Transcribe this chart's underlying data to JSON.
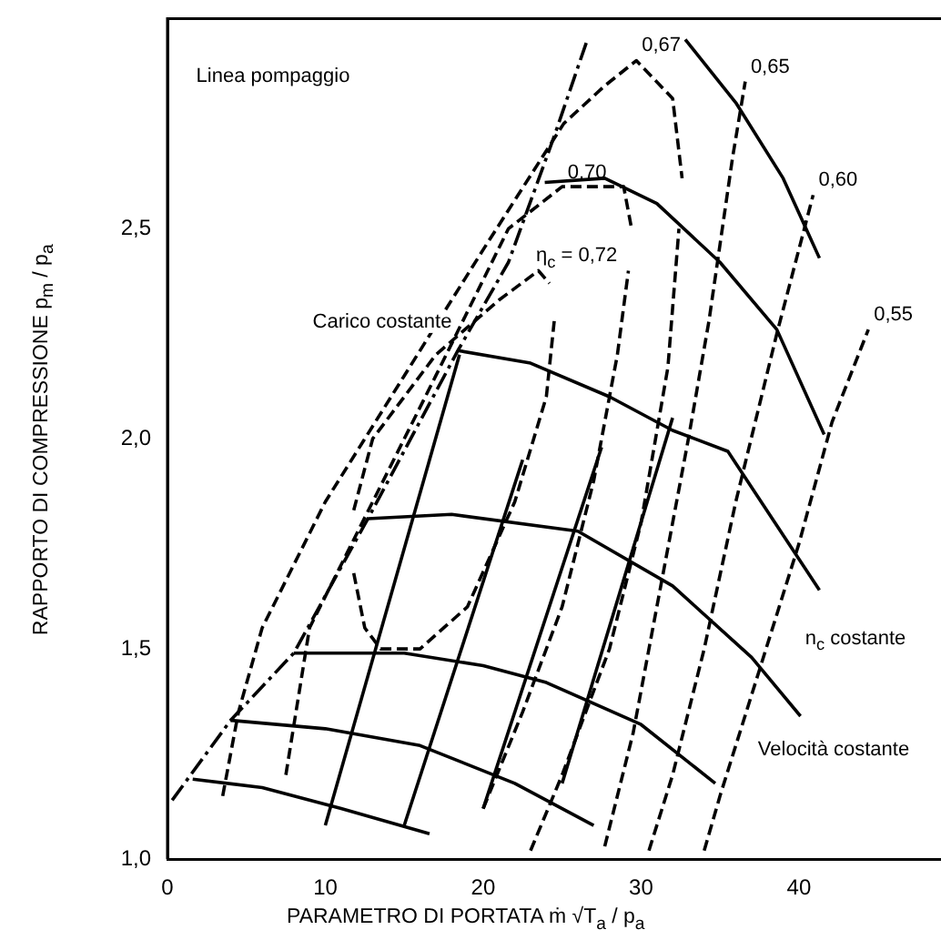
{
  "chart_data": {
    "type": "line",
    "xlabel": "PARAMETRO DI PORTATA ṁ √T$_{a}$ / p$_{a}$",
    "ylabel": "RAPPORTO DI COMPRESSIONE p$_{m}$ / p$_{a}$",
    "xlim": [
      0,
      49
    ],
    "ylim": [
      1,
      3
    ],
    "xticks": [
      0,
      10,
      20,
      30,
      40
    ],
    "yticks": [
      {
        "value": 1,
        "label": "1,0"
      },
      {
        "value": 1.5,
        "label": "1,5"
      },
      {
        "value": 2,
        "label": "2,0"
      },
      {
        "value": 2.5,
        "label": "2,5"
      }
    ],
    "grid": false,
    "legend": false,
    "marker": "none",
    "series": [
      {
        "color": "#000000",
        "line_style": "dashdot",
        "x": [
          0.3,
          4,
          8,
          12.7,
          18.4,
          21.6,
          24.5,
          26.6
        ],
        "values": [
          1.14,
          1.33,
          1.49,
          1.81,
          2.21,
          2.42,
          2.72,
          2.95
        ]
      },
      {
        "color": "#000000",
        "line_style": "solid",
        "x": [
          32.8,
          36,
          39,
          41.3
        ],
        "values": [
          2.95,
          2.8,
          2.62,
          2.43
        ]
      },
      {
        "color": "#000000",
        "line_style": "solid",
        "x": [
          23.9,
          27.7,
          31,
          35,
          38.6,
          41.6
        ],
        "values": [
          2.61,
          2.62,
          2.56,
          2.42,
          2.26,
          2.01
        ]
      },
      {
        "color": "#000000",
        "line_style": "solid",
        "x": [
          18.4,
          23,
          28,
          32,
          35.5,
          41.3
        ],
        "values": [
          2.21,
          2.18,
          2.1,
          2.02,
          1.97,
          1.64
        ]
      },
      {
        "color": "#000000",
        "line_style": "solid",
        "x": [
          12.7,
          18,
          26,
          32,
          37,
          40.1
        ],
        "values": [
          1.81,
          1.82,
          1.78,
          1.65,
          1.48,
          1.34
        ]
      },
      {
        "color": "#000000",
        "line_style": "solid",
        "x": [
          8,
          15,
          20,
          24,
          30,
          34.7
        ],
        "values": [
          1.49,
          1.49,
          1.46,
          1.42,
          1.32,
          1.18
        ]
      },
      {
        "color": "#000000",
        "line_style": "solid",
        "x": [
          4,
          10,
          16,
          22,
          27
        ],
        "values": [
          1.33,
          1.31,
          1.27,
          1.18,
          1.08
        ]
      },
      {
        "color": "#000000",
        "line_style": "solid",
        "x": [
          1.6,
          6,
          11,
          16.6
        ],
        "values": [
          1.19,
          1.17,
          1.12,
          1.06
        ]
      },
      {
        "color": "#000000",
        "line_style": "solid",
        "x": [
          10,
          18.5
        ],
        "values": [
          1.08,
          2.2
        ]
      },
      {
        "color": "#000000",
        "line_style": "solid",
        "x": [
          15,
          22.5
        ],
        "values": [
          1.08,
          1.95
        ]
      },
      {
        "color": "#000000",
        "line_style": "solid",
        "x": [
          20,
          27.5
        ],
        "values": [
          1.12,
          1.98
        ]
      },
      {
        "color": "#000000",
        "line_style": "solid",
        "x": [
          25,
          32
        ],
        "values": [
          1.18,
          2.05
        ]
      },
      {
        "color": "#000000",
        "line_style": "dashed",
        "x": [
          11.8,
          13,
          17,
          21,
          23.5,
          24.2
        ],
        "values": [
          1.83,
          2,
          2.2,
          2.33,
          2.4,
          2.37
        ]
      },
      {
        "color": "#000000",
        "line_style": "dashed",
        "x": [
          11.8,
          12.5,
          13.5,
          16,
          19,
          22,
          24,
          24.5
        ],
        "values": [
          1.68,
          1.55,
          1.5,
          1.5,
          1.6,
          1.85,
          2.1,
          2.28
        ]
      },
      {
        "color": "#000000",
        "line_style": "dashed",
        "x": [
          7.5,
          9,
          13,
          17,
          21.6,
          25,
          28.9,
          29.4
        ],
        "values": [
          1.2,
          1.55,
          1.85,
          2.15,
          2.5,
          2.6,
          2.6,
          2.5
        ]
      },
      {
        "color": "#000000",
        "line_style": "dashed",
        "x": [
          20,
          22.5,
          25,
          27,
          28.5,
          29.2
        ],
        "values": [
          1.12,
          1.35,
          1.6,
          1.9,
          2.2,
          2.4
        ]
      },
      {
        "color": "#000000",
        "line_style": "dashed",
        "x": [
          3.5,
          4.5,
          6,
          10,
          15,
          20,
          25.1,
          27.7,
          29.7,
          32,
          32.6
        ],
        "values": [
          1.15,
          1.35,
          1.55,
          1.85,
          2.15,
          2.45,
          2.75,
          2.84,
          2.9,
          2.81,
          2.62
        ]
      },
      {
        "color": "#000000",
        "line_style": "dashed",
        "x": [
          23,
          25,
          28,
          30,
          31.7,
          32.4
        ],
        "values": [
          1.02,
          1.2,
          1.5,
          1.8,
          2.17,
          2.5
        ]
      },
      {
        "color": "#000000",
        "line_style": "dashed",
        "x": [
          27.7,
          29.5,
          31,
          33,
          34.3,
          35.8,
          36.6
        ],
        "values": [
          1.03,
          1.3,
          1.6,
          2,
          2.28,
          2.67,
          2.85
        ]
      },
      {
        "color": "#000000",
        "line_style": "dashed",
        "x": [
          30.5,
          32,
          34,
          36,
          38.6,
          40.9
        ],
        "values": [
          1.02,
          1.2,
          1.5,
          1.85,
          2.25,
          2.58
        ]
      },
      {
        "color": "#000000",
        "line_style": "dashed",
        "x": [
          34,
          35,
          37.5,
          40,
          42.1,
          44.4
        ],
        "values": [
          1.02,
          1.15,
          1.45,
          1.75,
          2.04,
          2.26
        ]
      }
    ],
    "annotations": [
      "Linea pompaggio",
      "Carico costante",
      {
        "text": "η$_{c}$ = 0,72",
        "x": 23,
        "y": 2.39
      },
      {
        "text": "0,67",
        "x": 29.7,
        "y": 2.9
      },
      {
        "text": "0,70",
        "x": 25,
        "y": 2.6
      },
      {
        "text": "0,65",
        "x": 36.6,
        "y": 2.85
      },
      {
        "text": "0,60",
        "x": 40.9,
        "y": 2.58
      },
      {
        "text": "0,55",
        "x": 44.4,
        "y": 2.26
      },
      "n$_{c}$ costante",
      "Velocità costante"
    ]
  }
}
